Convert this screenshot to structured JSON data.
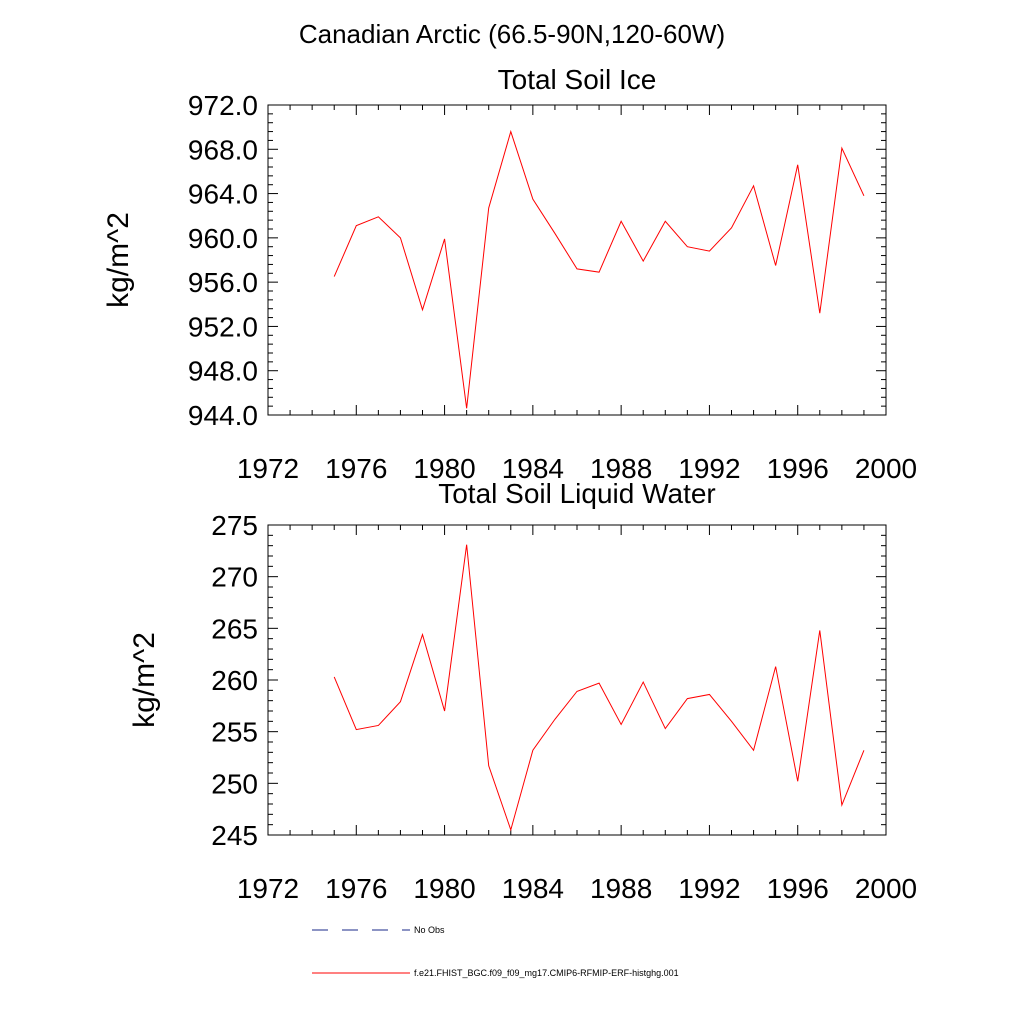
{
  "figure_title": "Canadian Arctic (66.5-90N,120-60W)",
  "chart_data": [
    {
      "type": "line",
      "title": "Total Soil Ice",
      "xlabel": "",
      "ylabel": "kg/m^2",
      "xlim": [
        1972,
        2000
      ],
      "ylim": [
        944.0,
        972.0
      ],
      "xticks": [
        "1972",
        "1976",
        "1980",
        "1984",
        "1988",
        "1992",
        "1996",
        "2000"
      ],
      "yticks": [
        "944.0",
        "948.0",
        "952.0",
        "956.0",
        "960.0",
        "964.0",
        "968.0",
        "972.0"
      ],
      "grid": false,
      "series": [
        {
          "name": "f.e21.FHIST_BGC.f09_f09_mg17.CMIP6-RFMIP-ERF-histghg.001",
          "color": "#ff0000",
          "x": [
            1975,
            1976,
            1977,
            1978,
            1979,
            1980,
            1981,
            1982,
            1983,
            1984,
            1985,
            1986,
            1987,
            1988,
            1989,
            1990,
            1991,
            1992,
            1993,
            1994,
            1995,
            1996,
            1997,
            1998,
            1999
          ],
          "values": [
            956.5,
            961.1,
            961.9,
            960.0,
            953.5,
            959.9,
            944.6,
            962.7,
            969.6,
            963.5,
            960.4,
            957.2,
            956.9,
            961.5,
            957.9,
            961.5,
            959.2,
            958.8,
            960.9,
            964.7,
            957.5,
            966.6,
            953.2,
            968.1,
            963.8
          ]
        }
      ]
    },
    {
      "type": "line",
      "title": "Total Soil Liquid Water",
      "xlabel": "",
      "ylabel": "kg/m^2",
      "xlim": [
        1972,
        2000
      ],
      "ylim": [
        245,
        275
      ],
      "xticks": [
        "1972",
        "1976",
        "1980",
        "1984",
        "1988",
        "1992",
        "1996",
        "2000"
      ],
      "yticks": [
        "245",
        "250",
        "255",
        "260",
        "265",
        "270",
        "275"
      ],
      "grid": false,
      "series": [
        {
          "name": "f.e21.FHIST_BGC.f09_f09_mg17.CMIP6-RFMIP-ERF-histghg.001",
          "color": "#ff0000",
          "x": [
            1975,
            1976,
            1977,
            1978,
            1979,
            1980,
            1981,
            1982,
            1983,
            1984,
            1985,
            1986,
            1987,
            1988,
            1989,
            1990,
            1991,
            1992,
            1993,
            1994,
            1995,
            1996,
            1997,
            1998,
            1999
          ],
          "values": [
            260.3,
            255.2,
            255.6,
            257.9,
            264.4,
            257.0,
            273.1,
            251.7,
            245.5,
            253.2,
            256.2,
            258.9,
            259.7,
            255.7,
            259.8,
            255.3,
            258.2,
            258.6,
            256.0,
            253.2,
            261.3,
            250.2,
            264.8,
            247.9,
            253.2
          ]
        }
      ]
    }
  ],
  "legend": {
    "placement": "bottom",
    "items": [
      {
        "label": "No Obs",
        "color": "#1a2a8a",
        "style": "dashed"
      },
      {
        "label": "f.e21.FHIST_BGC.f09_f09_mg17.CMIP6-RFMIP-ERF-histghg.001",
        "color": "#ff0000",
        "style": "solid"
      }
    ]
  }
}
